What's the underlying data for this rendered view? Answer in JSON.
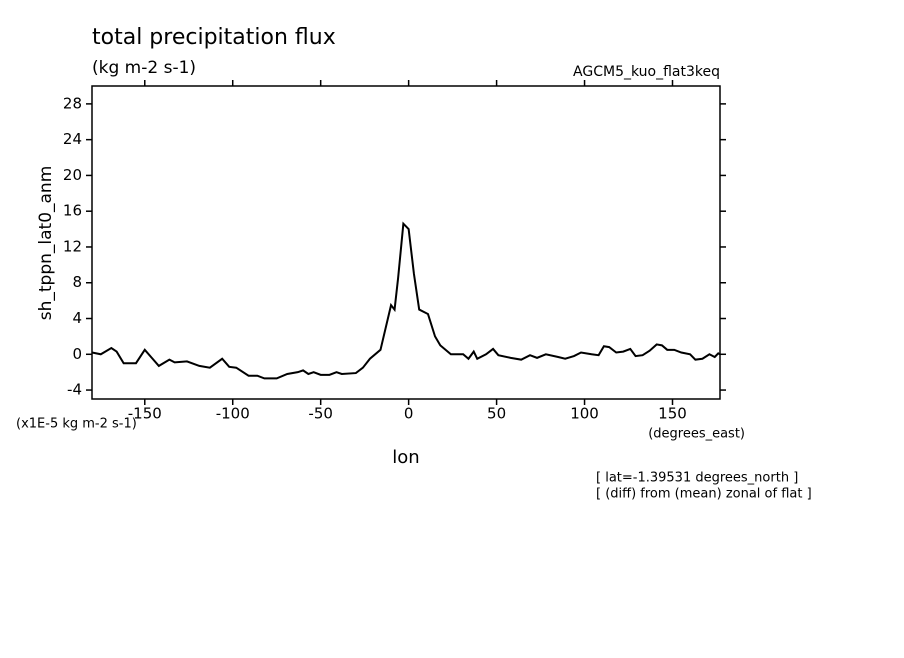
{
  "chart_data": {
    "type": "line",
    "title": "total precipitation flux",
    "subtitle": "(kg m-2 s-1)",
    "experiment": "AGCM5_kuo_flat3keq",
    "y_label": "sh_tppn_lat0_anm",
    "y_unit": "(x1E-5 kg m-2 s-1)",
    "x_label": "lon",
    "x_unit": "(degrees_east)",
    "annotations": [
      "[ lat=-1.39531 degrees_north ]",
      "[ (diff) from (mean) zonal of flat ]"
    ],
    "xlim": [
      -180,
      177
    ],
    "ylim": [
      -5,
      30
    ],
    "xticks": [
      -150,
      -100,
      -50,
      0,
      50,
      100,
      150
    ],
    "yticks": [
      -4,
      0,
      4,
      8,
      12,
      16,
      20,
      24,
      28
    ],
    "color": "#000000",
    "x": [
      -180,
      -175,
      -169,
      -166,
      -162,
      -155,
      -150,
      -146,
      -142,
      -136,
      -133,
      -126,
      -119,
      -113,
      -106,
      -102,
      -98,
      -91,
      -86,
      -82,
      -75,
      -69,
      -63,
      -60,
      -57,
      -54,
      -50,
      -45,
      -41,
      -38,
      -30,
      -26,
      -22,
      -16,
      -10,
      -8,
      -6,
      -3,
      0,
      3,
      6,
      11,
      15,
      18,
      24,
      31,
      34,
      37,
      39,
      44,
      48,
      51,
      58,
      64,
      69,
      73,
      78,
      85,
      89,
      94,
      98,
      104,
      108,
      111,
      114,
      118,
      122,
      126,
      129,
      133,
      137,
      141,
      144,
      147,
      151,
      155,
      160,
      163,
      167,
      171,
      174,
      176,
      177
    ],
    "values": [
      0.2,
      0,
      0.7,
      0.3,
      -1,
      -1,
      0.5,
      -0.4,
      -1.3,
      -0.6,
      -0.9,
      -0.8,
      -1.3,
      -1.5,
      -0.5,
      -1.4,
      -1.5,
      -2.4,
      -2.4,
      -2.7,
      -2.7,
      -2.2,
      -2,
      -1.8,
      -2.2,
      -2,
      -2.3,
      -2.3,
      -2,
      -2.2,
      -2.1,
      -1.5,
      -0.5,
      0.5,
      5.5,
      5,
      8.5,
      14.6,
      14,
      9,
      5,
      4.5,
      2,
      1,
      0,
      0,
      -0.5,
      0.3,
      -0.5,
      0,
      0.6,
      -0.1,
      -0.4,
      -0.6,
      -0.1,
      -0.4,
      0,
      -0.3,
      -0.5,
      -0.2,
      0.2,
      0,
      -0.1,
      0.9,
      0.8,
      0.2,
      0.3,
      0.6,
      -0.2,
      -0.1,
      0.4,
      1.1,
      1,
      0.5,
      0.5,
      0.2,
      0,
      -0.6,
      -0.5,
      0,
      -0.3,
      0.1,
      0
    ]
  }
}
